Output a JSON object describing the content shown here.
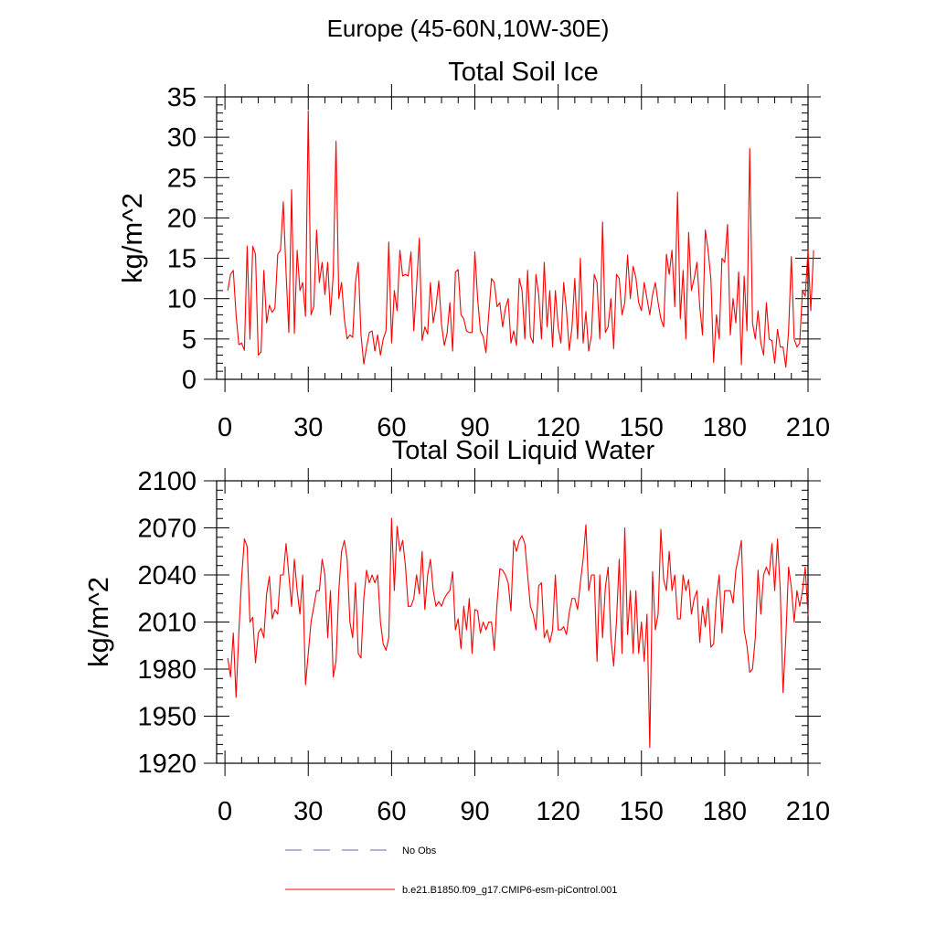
{
  "figure_title": "Europe (45-60N,10W-30E)",
  "colors": {
    "series": "#ff0000",
    "obs": "#6a6aa8",
    "axis": "#000000"
  },
  "legend": [
    {
      "label": "No Obs",
      "style": "dashed",
      "color": "#6a6aa8"
    },
    {
      "label": "b.e21.B1850.f09_g17.CMIP6-esm-piControl.001",
      "style": "solid",
      "color": "#ff0000"
    }
  ],
  "chart_data": [
    {
      "type": "line",
      "title": "Total Soil Ice",
      "xlabel": "",
      "ylabel": "kg/m^2",
      "xlim": [
        -3,
        210
      ],
      "ylim": [
        0,
        35
      ],
      "xticks": [
        0,
        30,
        60,
        90,
        120,
        150,
        180,
        210
      ],
      "yticks": [
        0,
        5,
        10,
        15,
        20,
        25,
        30,
        35
      ],
      "x_start": 1,
      "series": [
        {
          "name": "b.e21.B1850.f09_g17.CMIP6-esm-piControl.001",
          "values": [
            11,
            13,
            13.5,
            8,
            4.3,
            4.5,
            3.6,
            16.5,
            5,
            16.5,
            15.5,
            3,
            3.4,
            13.5,
            7,
            9.2,
            8.3,
            8.8,
            15.5,
            16,
            22,
            13.3,
            5.8,
            23.5,
            5.7,
            16,
            11,
            12,
            7.8,
            33.3,
            8,
            9,
            18.5,
            12,
            14.5,
            10.5,
            14.5,
            8,
            13,
            29.5,
            10,
            12,
            7.5,
            5,
            5.5,
            5.2,
            12,
            14.5,
            5.5,
            1.9,
            4,
            5.8,
            6,
            3.5,
            5.5,
            3,
            5,
            6,
            17,
            4.5,
            11,
            8.5,
            16,
            12.8,
            13,
            12.8,
            15.8,
            6,
            11.5,
            17.5,
            4.8,
            6.5,
            5.6,
            12,
            7,
            9,
            12.2,
            6.8,
            4.2,
            5.7,
            9.5,
            3.5,
            13.3,
            13.6,
            8,
            7.5,
            6,
            5.8,
            5.8,
            15.8,
            10,
            6,
            5.3,
            3.3,
            8,
            12.5,
            12,
            9,
            9.5,
            6.5,
            8.8,
            10,
            4.5,
            6,
            4.2,
            12.5,
            11,
            5,
            13.5,
            5.3,
            4.5,
            13,
            10.5,
            5,
            14.5,
            6.5,
            11,
            4,
            11,
            6.5,
            4.5,
            12,
            8.5,
            3.6,
            6.5,
            12.5,
            5,
            15,
            4.5,
            8.4,
            3.5,
            5.5,
            13,
            12,
            5,
            19.5,
            5.8,
            6.5,
            10,
            3.8,
            13,
            12.5,
            8,
            9.5,
            15.4,
            10,
            14,
            12.6,
            9.5,
            8.5,
            12,
            10,
            8,
            10.5,
            12,
            9.5,
            7.5,
            6.5,
            15.5,
            13,
            16,
            9,
            23.2,
            7.5,
            13.5,
            5,
            18.2,
            11,
            12.5,
            14.5,
            9,
            5.5,
            18.5,
            16,
            12.5,
            2.1,
            8,
            5,
            15,
            14.5,
            19.2,
            5.5,
            10,
            7,
            13.3,
            1.8,
            12.8,
            6,
            28.6,
            7,
            5,
            8.5,
            4.5,
            3,
            9.5,
            5,
            4.8,
            2,
            6.2,
            4,
            4,
            1.5,
            6,
            15.2,
            5,
            4,
            4.5,
            11,
            10.3,
            16,
            8.5,
            16
          ]
        }
      ]
    },
    {
      "type": "line",
      "title": "Total Soil Liquid Water",
      "xlabel": "",
      "ylabel": "kg/m^2",
      "xlim": [
        -3,
        210
      ],
      "ylim": [
        1920,
        2100
      ],
      "xticks": [
        0,
        30,
        60,
        90,
        120,
        150,
        180,
        210
      ],
      "yticks": [
        1920,
        1950,
        1980,
        2010,
        2040,
        2070,
        2100
      ],
      "x_start": 1,
      "series": [
        {
          "name": "b.e21.B1850.f09_g17.CMIP6-esm-piControl.001",
          "values": [
            1987,
            1975,
            2003,
            1962,
            2003,
            2038,
            2063,
            2058,
            2010,
            2013,
            1984,
            2003,
            2006,
            2000,
            2028,
            2039,
            2012,
            2018,
            2015,
            2040,
            2040,
            2060,
            2040,
            2020,
            2050,
            2030,
            2015,
            2040,
            1970,
            1990,
            2010,
            2020,
            2030,
            2030,
            2050,
            2040,
            2000,
            2030,
            1975,
            1985,
            2030,
            2055,
            2062,
            2050,
            2010,
            2000,
            2035,
            1990,
            1987,
            2025,
            2043,
            2035,
            2040,
            2035,
            2040,
            2010,
            1996,
            1992,
            2000,
            2076,
            2030,
            2071,
            2055,
            2062,
            2046,
            2020,
            2020,
            2025,
            2040,
            2028,
            2055,
            2018,
            2040,
            2050,
            2030,
            2020,
            2023,
            2020,
            2025,
            2028,
            2030,
            2042,
            2005,
            2012,
            1993,
            2020,
            2005,
            2025,
            1990,
            2018,
            2017,
            2003,
            2010,
            2005,
            2010,
            2010,
            1992,
            2022,
            2044,
            2043,
            2040,
            2035,
            2017,
            2062,
            2055,
            2062,
            2065,
            2060,
            2040,
            2020,
            2015,
            2005,
            2033,
            2035,
            2000,
            2005,
            1997,
            2005,
            2040,
            2005,
            2005,
            2007,
            2002,
            2016,
            2025,
            2025,
            2018,
            2035,
            2050,
            2072,
            2030,
            2040,
            2040,
            1985,
            2040,
            2000,
            2032,
            2045,
            2000,
            1982,
            2010,
            2050,
            1990,
            2070,
            2002,
            2030,
            1990,
            2030,
            1990,
            2010,
            1985,
            2015,
            1930,
            2042,
            2005,
            2015,
            2069,
            2037,
            2030,
            2055,
            2030,
            2040,
            2012,
            2012,
            2040,
            2030,
            2037,
            2015,
            2025,
            2030,
            1997,
            2020,
            2007,
            2025,
            1994,
            1996,
            2025,
            2040,
            2003,
            2030,
            2030,
            2030,
            2022,
            2043,
            2052,
            2062,
            2005,
            1995,
            1978,
            1980,
            2000,
            2043,
            2015,
            2040,
            2045,
            2040,
            2060,
            2030,
            2063,
            2030,
            1965,
            2000,
            2045,
            2032,
            2010,
            2030,
            2020,
            2030,
            2045,
            2014
          ]
        }
      ]
    }
  ]
}
